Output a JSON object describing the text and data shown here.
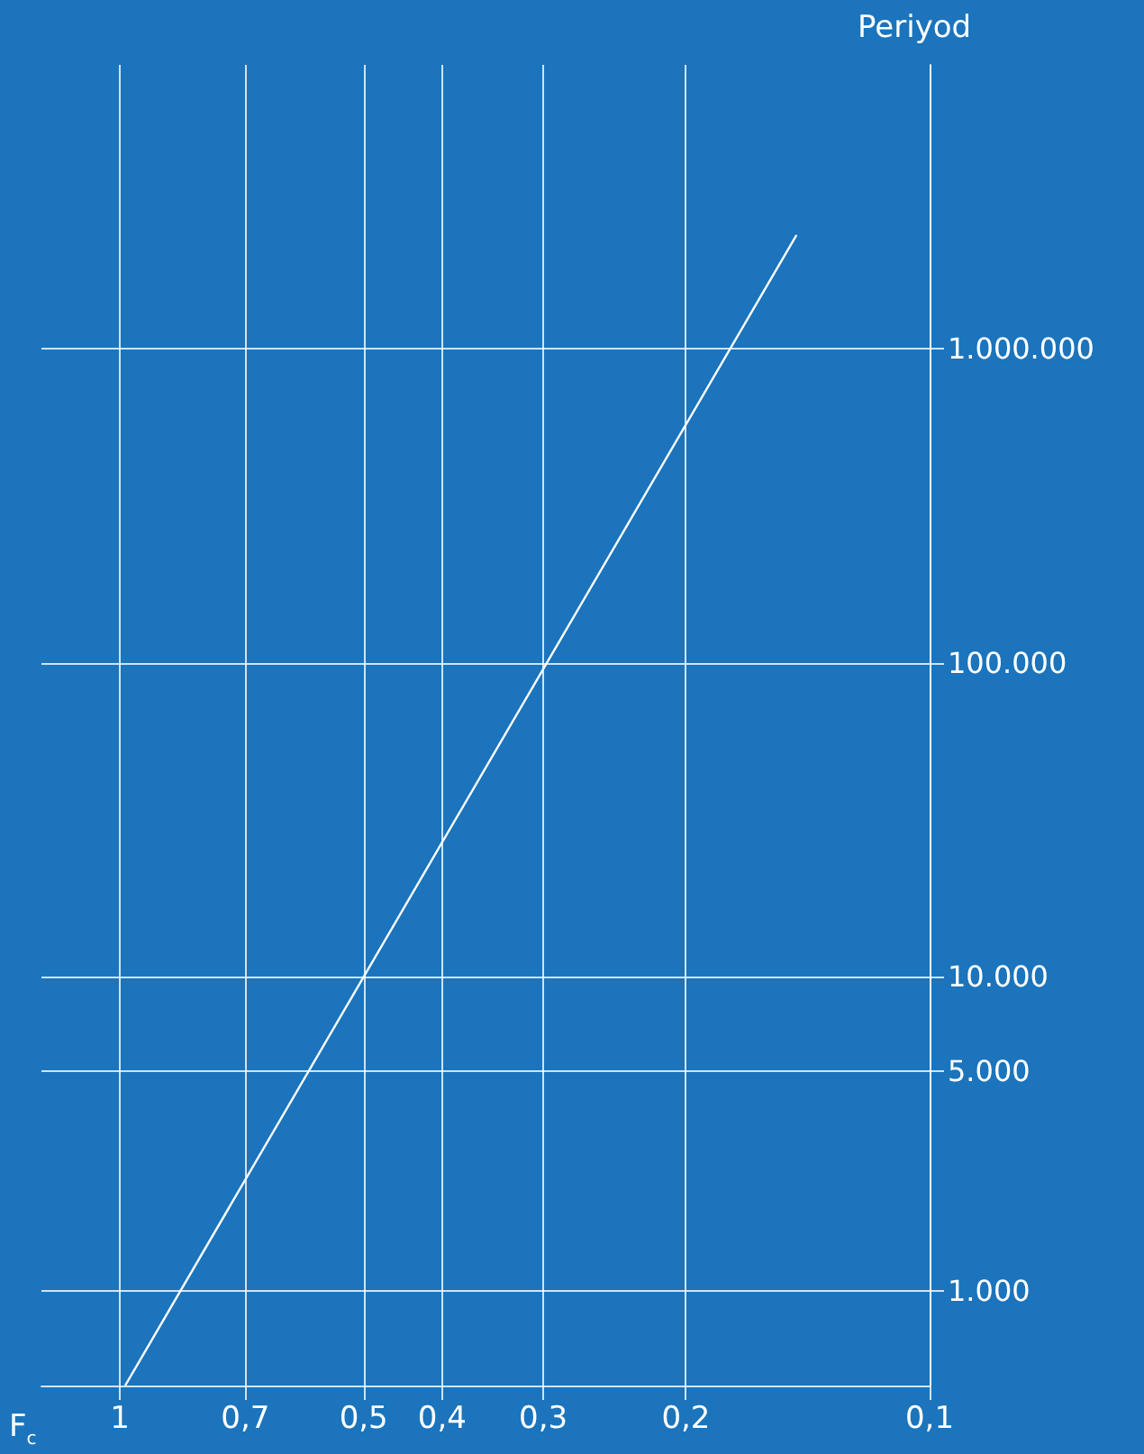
{
  "chart_data": {
    "type": "line",
    "xlabel": "F$_{c}$",
    "ylabel": "Periyod",
    "log": "xy",
    "grid": true,
    "marker": "none",
    "line_style": "solid",
    "xlim": [
      1.25,
      0.1
    ],
    "xticks": [
      1,
      {
        "value": 0.7,
        "label": "0,7"
      },
      {
        "value": 0.5,
        "label": "0,5"
      },
      {
        "value": 0.4,
        "label": "0,4"
      },
      {
        "value": 0.3,
        "label": "0,3"
      },
      {
        "value": 0.2,
        "label": "0,2"
      },
      {
        "value": 0.1,
        "label": "0,1"
      }
    ],
    "ylim": [
      500,
      8000000
    ],
    "yticks": [
      {
        "value": 1000,
        "label": "1.000"
      },
      {
        "value": 5000,
        "label": "5.000"
      },
      {
        "value": 10000,
        "label": "10.000"
      },
      {
        "value": 100000,
        "label": "100.000"
      },
      {
        "value": 1000000,
        "label": "1.000.000"
      }
    ],
    "series": [
      {
        "color": "#ffffff",
        "x": [
          0.985,
          0.146
        ],
        "values": [
          500,
          2300000
        ]
      }
    ]
  }
}
